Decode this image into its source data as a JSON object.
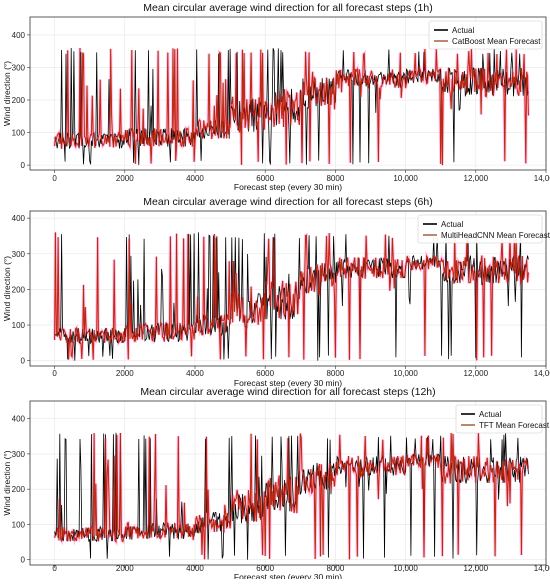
{
  "colors": {
    "actual": "#000000",
    "forecast_line": "#8b3a0f",
    "band": "#ff0000",
    "band_glow": "#ff66cc",
    "grid": "#e6e6e6",
    "frame": "#333333"
  },
  "chart_data": [
    {
      "type": "line",
      "title": "Mean circular average wind direction for all forecast steps (1h)",
      "xlabel": "Forecast step (every 30 min)",
      "ylabel": "Wind direction (°)",
      "xlim": [
        -700,
        14000
      ],
      "ylim": [
        -15,
        455
      ],
      "xticks": [
        0,
        2000,
        4000,
        6000,
        8000,
        10000,
        12000,
        14000
      ],
      "xtick_labels": [
        "0",
        "2000",
        "4000",
        "6000",
        "8000",
        "10,000",
        "12,000",
        "14,000"
      ],
      "yticks": [
        0,
        100,
        200,
        300,
        400
      ],
      "yticks_labels": [
        "0",
        "100",
        "200",
        "300",
        "400"
      ],
      "grid": true,
      "legend_position": "top-right",
      "series": [
        {
          "name": "Actual",
          "color": "#000000"
        },
        {
          "name": "CatBoost Mean Forecast",
          "color": "#8b3a0f"
        }
      ],
      "segments": [
        {
          "x": [
            0,
            2000
          ],
          "base": 75,
          "noise": 25
        },
        {
          "x": [
            2000,
            4000
          ],
          "base": 85,
          "noise": 30
        },
        {
          "x": [
            4000,
            5000
          ],
          "base": 110,
          "noise": 30
        },
        {
          "x": [
            5000,
            6000
          ],
          "base": 155,
          "noise": 55
        },
        {
          "x": [
            6000,
            7000
          ],
          "base": 175,
          "noise": 60
        },
        {
          "x": [
            7000,
            8000
          ],
          "base": 220,
          "noise": 50
        },
        {
          "x": [
            8000,
            10000
          ],
          "base": 265,
          "noise": 30
        },
        {
          "x": [
            10000,
            11000
          ],
          "base": 275,
          "noise": 25
        },
        {
          "x": [
            11000,
            13500
          ],
          "base": 255,
          "noise": 45
        }
      ]
    },
    {
      "type": "line",
      "title": "Mean circular average wind direction for all forecast steps (6h)",
      "xlabel": "Forecast step (every 30 min)",
      "ylabel": "Wind direction (°)",
      "xlim": [
        -700,
        14000
      ],
      "ylim": [
        -15,
        420
      ],
      "xticks": [
        0,
        2000,
        4000,
        6000,
        8000,
        10000,
        12000,
        14000
      ],
      "xtick_labels": [
        "0",
        "2000",
        "4000",
        "6000",
        "8000",
        "10,000",
        "12,000",
        "14,000"
      ],
      "yticks": [
        0,
        100,
        200,
        300,
        400
      ],
      "yticks_labels": [
        "0",
        "100",
        "200",
        "300",
        "400"
      ],
      "grid": true,
      "legend_position": "top-right",
      "series": [
        {
          "name": "Actual",
          "color": "#000000"
        },
        {
          "name": "MultiHeadCNN Mean Forecast",
          "color": "#8b3a0f"
        }
      ],
      "segments": [
        {
          "x": [
            0,
            2000
          ],
          "base": 70,
          "noise": 22
        },
        {
          "x": [
            2000,
            4000
          ],
          "base": 80,
          "noise": 28
        },
        {
          "x": [
            4000,
            5000
          ],
          "base": 100,
          "noise": 30
        },
        {
          "x": [
            5000,
            6000
          ],
          "base": 140,
          "noise": 50
        },
        {
          "x": [
            6000,
            7000
          ],
          "base": 170,
          "noise": 55
        },
        {
          "x": [
            7000,
            8000
          ],
          "base": 230,
          "noise": 45
        },
        {
          "x": [
            8000,
            10000
          ],
          "base": 260,
          "noise": 30
        },
        {
          "x": [
            10000,
            11000
          ],
          "base": 275,
          "noise": 20
        },
        {
          "x": [
            11000,
            13500
          ],
          "base": 255,
          "noise": 40
        }
      ]
    },
    {
      "type": "line",
      "title": "Mean circular average wind direction for all forecast steps (12h)",
      "xlabel": "Forecast step (every 30 min)",
      "ylabel": "Wind direction (°)",
      "xlim": [
        -700,
        14000
      ],
      "ylim": [
        -15,
        450
      ],
      "xticks": [
        0,
        2000,
        4000,
        6000,
        8000,
        10000,
        12000,
        14000
      ],
      "xtick_labels": [
        "0",
        "2000",
        "4000",
        "6000",
        "8000",
        "10,000",
        "12,000",
        "14,000"
      ],
      "yticks": [
        0,
        100,
        200,
        300,
        400
      ],
      "yticks_labels": [
        "0",
        "100",
        "200",
        "300",
        "400"
      ],
      "grid": true,
      "legend_position": "top-right",
      "series": [
        {
          "name": "Actual",
          "color": "#000000"
        },
        {
          "name": "TFT Mean Forecast",
          "color": "#8b3a0f"
        }
      ],
      "segments": [
        {
          "x": [
            0,
            2000
          ],
          "base": 72,
          "noise": 22
        },
        {
          "x": [
            2000,
            4000
          ],
          "base": 80,
          "noise": 25
        },
        {
          "x": [
            4000,
            5000
          ],
          "base": 105,
          "noise": 30
        },
        {
          "x": [
            5000,
            6000
          ],
          "base": 150,
          "noise": 50
        },
        {
          "x": [
            6000,
            7000
          ],
          "base": 180,
          "noise": 55
        },
        {
          "x": [
            7000,
            8000
          ],
          "base": 230,
          "noise": 45
        },
        {
          "x": [
            8000,
            10000
          ],
          "base": 265,
          "noise": 30
        },
        {
          "x": [
            10000,
            11000
          ],
          "base": 280,
          "noise": 20
        },
        {
          "x": [
            11000,
            13500
          ],
          "base": 255,
          "noise": 40
        }
      ]
    }
  ]
}
